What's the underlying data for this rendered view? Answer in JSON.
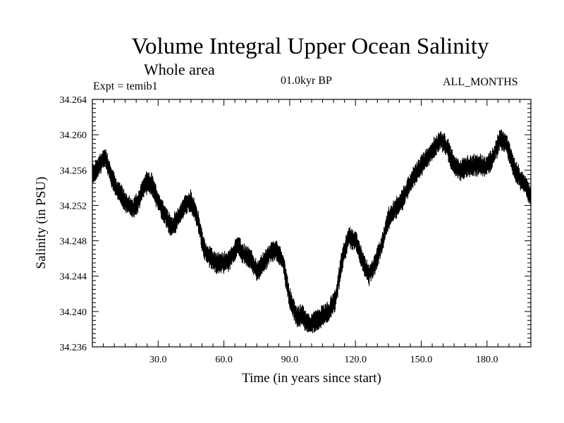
{
  "header": {
    "title": "Volume Integral Upper Ocean Salinity",
    "subtitle": "Whole area",
    "experiment": "Expt = temib1",
    "period": "01.0kyr BP",
    "months": "ALL_MONTHS"
  },
  "chart_data": {
    "type": "line",
    "title": "Volume Integral Upper Ocean Salinity",
    "xlabel": "Time (in years since start)",
    "ylabel": "Salinity (in PSU)",
    "xlim": [
      0,
      200
    ],
    "ylim": [
      34.236,
      34.264
    ],
    "xticks": [
      30,
      60,
      90,
      120,
      150,
      180
    ],
    "xtick_labels": [
      "30.0",
      "60.0",
      "90.0",
      "120.0",
      "150.0",
      "180.0"
    ],
    "yticks": [
      34.236,
      34.24,
      34.244,
      34.248,
      34.252,
      34.256,
      34.26,
      34.264
    ],
    "ytick_labels": [
      "34.236",
      "34.240",
      "34.244",
      "34.248",
      "34.252",
      "34.256",
      "34.260",
      "34.264"
    ],
    "grid": false,
    "series": [
      {
        "name": "temib1",
        "color": "#000000",
        "x": [
          0,
          3,
          6,
          9,
          12,
          15,
          18,
          21,
          24,
          27,
          30,
          33,
          36,
          39,
          42,
          45,
          48,
          51,
          54,
          57,
          60,
          63,
          66,
          69,
          72,
          75,
          78,
          81,
          84,
          87,
          90,
          93,
          96,
          99,
          102,
          105,
          108,
          111,
          114,
          117,
          120,
          123,
          126,
          129,
          132,
          135,
          138,
          141,
          144,
          147,
          150,
          153,
          156,
          159,
          162,
          165,
          168,
          171,
          174,
          177,
          180,
          183,
          186,
          189,
          192,
          195,
          198,
          200
        ],
        "y": [
          34.2555,
          34.2565,
          34.2575,
          34.255,
          34.2535,
          34.2525,
          34.2515,
          34.2525,
          34.2545,
          34.2545,
          34.2525,
          34.251,
          34.2495,
          34.2505,
          34.252,
          34.2525,
          34.2505,
          34.247,
          34.246,
          34.2455,
          34.2455,
          34.246,
          34.2475,
          34.2465,
          34.246,
          34.2445,
          34.2455,
          34.2465,
          34.247,
          34.2455,
          34.2415,
          34.2395,
          34.2395,
          34.2385,
          34.239,
          34.2395,
          34.24,
          34.2415,
          34.246,
          34.2485,
          34.248,
          34.246,
          34.244,
          34.2455,
          34.2475,
          34.2505,
          34.2515,
          34.2525,
          34.254,
          34.2555,
          34.2565,
          34.2575,
          34.2585,
          34.2595,
          34.2585,
          34.2565,
          34.256,
          34.2565,
          34.2565,
          34.2565,
          34.2565,
          34.2575,
          34.2595,
          34.259,
          34.2565,
          34.255,
          34.254,
          34.253
        ]
      }
    ]
  }
}
